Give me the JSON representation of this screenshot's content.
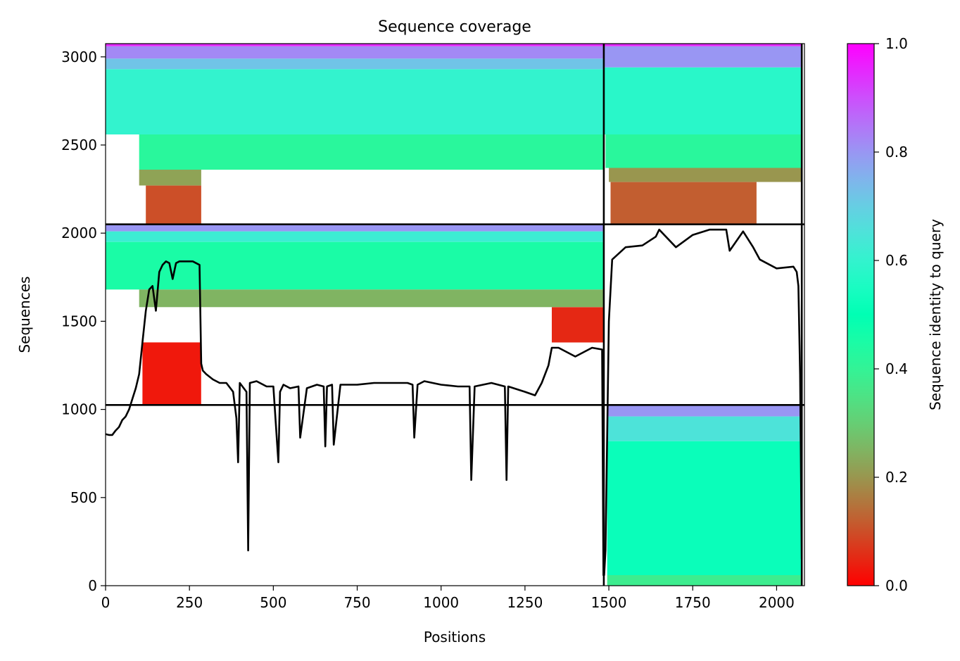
{
  "chart_data": {
    "type": "heatmap",
    "title": "Sequence coverage",
    "xlabel": "Positions",
    "ylabel": "Sequences",
    "xlim": [
      0,
      2083
    ],
    "ylim": [
      0,
      3075
    ],
    "xticks": [
      0,
      250,
      500,
      750,
      1000,
      1250,
      1500,
      1750,
      2000
    ],
    "yticks": [
      0,
      500,
      1000,
      1500,
      2000,
      2500,
      3000
    ],
    "colorbar": {
      "label": "Sequence identity to query",
      "range": [
        0.0,
        1.0
      ],
      "ticks": [
        "0.0",
        "0.2",
        "0.4",
        "0.6",
        "0.8",
        "1.0"
      ],
      "colormap": "rainbow_r"
    },
    "chain_boundary_x": [
      1485,
      2075
    ],
    "block_boundary_y": [
      1025,
      2050
    ],
    "blocks": [
      {
        "x": [
          0,
          1485
        ],
        "y": [
          2050,
          3075
        ],
        "rows": [
          {
            "y": [
              3060,
              3075
            ],
            "x": [
              0,
              1485
            ],
            "identity": 0.95
          },
          {
            "y": [
              2990,
              3060
            ],
            "x": [
              0,
              1485
            ],
            "identity": 0.82
          },
          {
            "y": [
              2930,
              2990
            ],
            "x": [
              0,
              1485
            ],
            "identity": 0.72
          },
          {
            "y": [
              2560,
              2930
            ],
            "x": [
              0,
              1485
            ],
            "identity": 0.6
          },
          {
            "y": [
              2360,
              2560
            ],
            "x": [
              100,
              1485
            ],
            "identity": 0.42
          },
          {
            "y": [
              2270,
              2360
            ],
            "x": [
              100,
              285
            ],
            "identity": 0.22
          },
          {
            "y": [
              2050,
              2270
            ],
            "x": [
              120,
              285
            ],
            "identity": 0.1
          }
        ]
      },
      {
        "x": [
          1485,
          2075
        ],
        "y": [
          2050,
          3075
        ],
        "rows": [
          {
            "y": [
              3060,
              3075
            ],
            "x": [
              1485,
              2075
            ],
            "identity": 0.95
          },
          {
            "y": [
              2940,
              3060
            ],
            "x": [
              1485,
              2075
            ],
            "identity": 0.8
          },
          {
            "y": [
              2560,
              2940
            ],
            "x": [
              1485,
              2075
            ],
            "identity": 0.58
          },
          {
            "y": [
              2370,
              2560
            ],
            "x": [
              1490,
              2075
            ],
            "identity": 0.42
          },
          {
            "y": [
              2290,
              2370
            ],
            "x": [
              1500,
              2075
            ],
            "identity": 0.2
          },
          {
            "y": [
              2050,
              2290
            ],
            "x": [
              1505,
              1940
            ],
            "identity": 0.12
          }
        ]
      },
      {
        "x": [
          0,
          1485
        ],
        "y": [
          1025,
          2050
        ],
        "rows": [
          {
            "y": [
              2010,
              2050
            ],
            "x": [
              0,
              1485
            ],
            "identity": 0.8
          },
          {
            "y": [
              1950,
              2010
            ],
            "x": [
              0,
              1485
            ],
            "identity": 0.62
          },
          {
            "y": [
              1680,
              1950
            ],
            "x": [
              0,
              1485
            ],
            "identity": 0.45
          },
          {
            "y": [
              1580,
              1680
            ],
            "x": [
              100,
              1485
            ],
            "identity": 0.25
          },
          {
            "y": [
              1380,
              1580
            ],
            "x": [
              1330,
              1485
            ],
            "identity": 0.05
          },
          {
            "y": [
              1025,
              1380
            ],
            "x": [
              110,
              285
            ],
            "identity": 0.03
          }
        ]
      },
      {
        "x": [
          1485,
          2075
        ],
        "y": [
          0,
          1025
        ],
        "rows": [
          {
            "y": [
              960,
              1025
            ],
            "x": [
              1495,
              2075
            ],
            "identity": 0.8
          },
          {
            "y": [
              820,
              960
            ],
            "x": [
              1495,
              2075
            ],
            "identity": 0.65
          },
          {
            "y": [
              60,
              820
            ],
            "x": [
              1495,
              2075
            ],
            "identity": 0.52
          },
          {
            "y": [
              0,
              60
            ],
            "x": [
              1495,
              2075
            ],
            "identity": 0.38
          }
        ]
      }
    ],
    "coverage_line": {
      "x": [
        0,
        10,
        20,
        30,
        40,
        50,
        60,
        70,
        80,
        90,
        100,
        110,
        120,
        130,
        140,
        150,
        160,
        170,
        180,
        190,
        200,
        210,
        220,
        240,
        260,
        280,
        285,
        290,
        300,
        320,
        340,
        360,
        380,
        390,
        395,
        400,
        420,
        425,
        430,
        450,
        480,
        500,
        515,
        520,
        530,
        550,
        575,
        580,
        600,
        630,
        650,
        655,
        660,
        675,
        680,
        700,
        750,
        800,
        850,
        900,
        915,
        920,
        930,
        950,
        1000,
        1050,
        1085,
        1090,
        1100,
        1150,
        1190,
        1195,
        1200,
        1250,
        1280,
        1300,
        1320,
        1330,
        1350,
        1400,
        1450,
        1480,
        1484,
        1486,
        1490,
        1500,
        1510,
        1550,
        1600,
        1640,
        1650,
        1700,
        1750,
        1800,
        1850,
        1860,
        1900,
        1930,
        1950,
        2000,
        2050,
        2060,
        2065,
        2070,
        2075
      ],
      "y": [
        860,
        855,
        855,
        880,
        900,
        940,
        960,
        1000,
        1060,
        1120,
        1200,
        1380,
        1560,
        1680,
        1700,
        1560,
        1780,
        1820,
        1840,
        1830,
        1740,
        1830,
        1840,
        1840,
        1840,
        1820,
        1260,
        1220,
        1200,
        1170,
        1150,
        1150,
        1100,
        950,
        700,
        1150,
        1100,
        200,
        1150,
        1160,
        1130,
        1130,
        700,
        1100,
        1140,
        1120,
        1130,
        840,
        1120,
        1140,
        1130,
        790,
        1130,
        1140,
        800,
        1140,
        1140,
        1150,
        1150,
        1150,
        1140,
        840,
        1140,
        1160,
        1140,
        1130,
        1130,
        600,
        1130,
        1150,
        1130,
        600,
        1130,
        1100,
        1080,
        1150,
        1250,
        1350,
        1350,
        1300,
        1350,
        1340,
        60,
        60,
        200,
        1500,
        1850,
        1920,
        1930,
        1980,
        2020,
        1920,
        1990,
        2020,
        2020,
        1900,
        2010,
        1920,
        1850,
        1800,
        1810,
        1780,
        1700,
        1200,
        150
      ]
    }
  }
}
